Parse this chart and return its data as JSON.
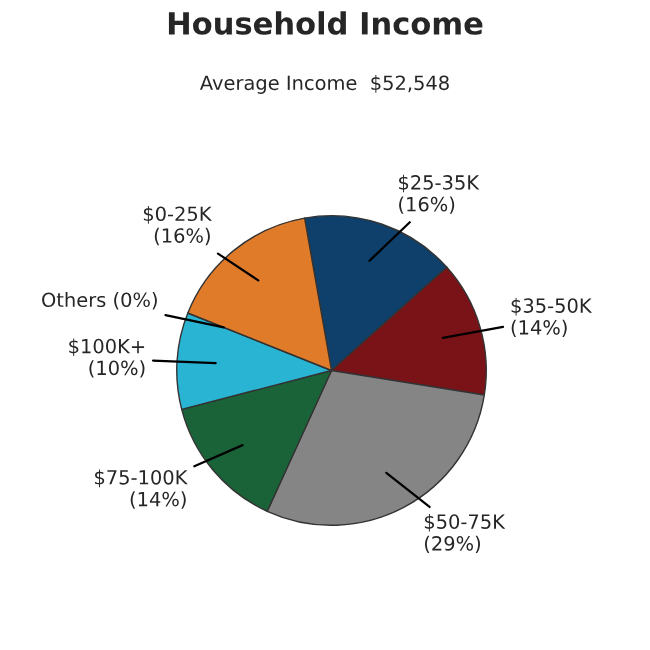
{
  "chart_data": {
    "type": "pie",
    "title": "Household Income",
    "subtitle": "Average Income  $52,548",
    "categories": [
      "$25-35K",
      "$35-50K",
      "$50-75K",
      "$75-100K",
      "$100K+",
      "Others",
      "$0-25K"
    ],
    "values": [
      16,
      14,
      29,
      14,
      10,
      0,
      16
    ],
    "value_labels": [
      "(16%)",
      "(14%)",
      "(29%)",
      "(14%)",
      "(10%)",
      "(0%)",
      "(16%)"
    ],
    "colors": [
      "#0f3f6b",
      "#7a1318",
      "#858585",
      "#1a6338",
      "#28b4d2",
      "#cccccc",
      "#e07b2a"
    ]
  }
}
